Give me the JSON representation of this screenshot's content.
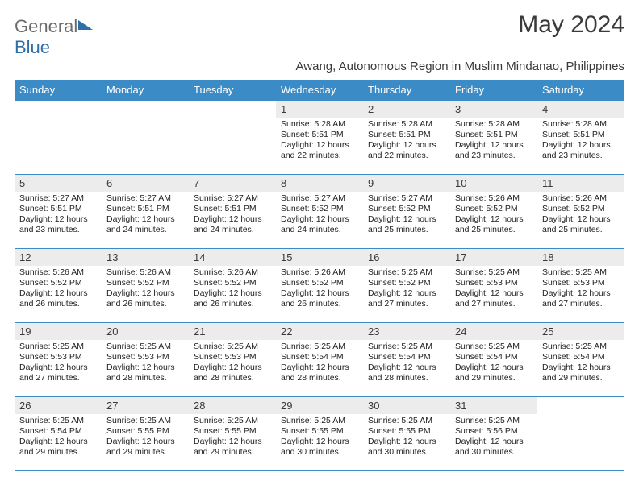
{
  "brand": {
    "part1": "General",
    "part2": "Blue"
  },
  "title": "May 2024",
  "subtitle": "Awang, Autonomous Region in Muslim Mindanao, Philippines",
  "colors": {
    "header_bg": "#3b8bc7",
    "header_fg": "#ffffff",
    "daynum_bg": "#ececec",
    "text": "#3a3a3a",
    "border": "#3b8bc7",
    "logo_gray": "#6b6b6b",
    "logo_blue": "#2f6fa8"
  },
  "weekdays": [
    "Sunday",
    "Monday",
    "Tuesday",
    "Wednesday",
    "Thursday",
    "Friday",
    "Saturday"
  ],
  "weeks": [
    [
      null,
      null,
      null,
      {
        "n": "1",
        "sr": "5:28 AM",
        "ss": "5:51 PM",
        "dlh": "12",
        "dlm": "22"
      },
      {
        "n": "2",
        "sr": "5:28 AM",
        "ss": "5:51 PM",
        "dlh": "12",
        "dlm": "22"
      },
      {
        "n": "3",
        "sr": "5:28 AM",
        "ss": "5:51 PM",
        "dlh": "12",
        "dlm": "23"
      },
      {
        "n": "4",
        "sr": "5:28 AM",
        "ss": "5:51 PM",
        "dlh": "12",
        "dlm": "23"
      }
    ],
    [
      {
        "n": "5",
        "sr": "5:27 AM",
        "ss": "5:51 PM",
        "dlh": "12",
        "dlm": "23"
      },
      {
        "n": "6",
        "sr": "5:27 AM",
        "ss": "5:51 PM",
        "dlh": "12",
        "dlm": "24"
      },
      {
        "n": "7",
        "sr": "5:27 AM",
        "ss": "5:51 PM",
        "dlh": "12",
        "dlm": "24"
      },
      {
        "n": "8",
        "sr": "5:27 AM",
        "ss": "5:52 PM",
        "dlh": "12",
        "dlm": "24"
      },
      {
        "n": "9",
        "sr": "5:27 AM",
        "ss": "5:52 PM",
        "dlh": "12",
        "dlm": "25"
      },
      {
        "n": "10",
        "sr": "5:26 AM",
        "ss": "5:52 PM",
        "dlh": "12",
        "dlm": "25"
      },
      {
        "n": "11",
        "sr": "5:26 AM",
        "ss": "5:52 PM",
        "dlh": "12",
        "dlm": "25"
      }
    ],
    [
      {
        "n": "12",
        "sr": "5:26 AM",
        "ss": "5:52 PM",
        "dlh": "12",
        "dlm": "26"
      },
      {
        "n": "13",
        "sr": "5:26 AM",
        "ss": "5:52 PM",
        "dlh": "12",
        "dlm": "26"
      },
      {
        "n": "14",
        "sr": "5:26 AM",
        "ss": "5:52 PM",
        "dlh": "12",
        "dlm": "26"
      },
      {
        "n": "15",
        "sr": "5:26 AM",
        "ss": "5:52 PM",
        "dlh": "12",
        "dlm": "26"
      },
      {
        "n": "16",
        "sr": "5:25 AM",
        "ss": "5:52 PM",
        "dlh": "12",
        "dlm": "27"
      },
      {
        "n": "17",
        "sr": "5:25 AM",
        "ss": "5:53 PM",
        "dlh": "12",
        "dlm": "27"
      },
      {
        "n": "18",
        "sr": "5:25 AM",
        "ss": "5:53 PM",
        "dlh": "12",
        "dlm": "27"
      }
    ],
    [
      {
        "n": "19",
        "sr": "5:25 AM",
        "ss": "5:53 PM",
        "dlh": "12",
        "dlm": "27"
      },
      {
        "n": "20",
        "sr": "5:25 AM",
        "ss": "5:53 PM",
        "dlh": "12",
        "dlm": "28"
      },
      {
        "n": "21",
        "sr": "5:25 AM",
        "ss": "5:53 PM",
        "dlh": "12",
        "dlm": "28"
      },
      {
        "n": "22",
        "sr": "5:25 AM",
        "ss": "5:54 PM",
        "dlh": "12",
        "dlm": "28"
      },
      {
        "n": "23",
        "sr": "5:25 AM",
        "ss": "5:54 PM",
        "dlh": "12",
        "dlm": "28"
      },
      {
        "n": "24",
        "sr": "5:25 AM",
        "ss": "5:54 PM",
        "dlh": "12",
        "dlm": "29"
      },
      {
        "n": "25",
        "sr": "5:25 AM",
        "ss": "5:54 PM",
        "dlh": "12",
        "dlm": "29"
      }
    ],
    [
      {
        "n": "26",
        "sr": "5:25 AM",
        "ss": "5:54 PM",
        "dlh": "12",
        "dlm": "29"
      },
      {
        "n": "27",
        "sr": "5:25 AM",
        "ss": "5:55 PM",
        "dlh": "12",
        "dlm": "29"
      },
      {
        "n": "28",
        "sr": "5:25 AM",
        "ss": "5:55 PM",
        "dlh": "12",
        "dlm": "29"
      },
      {
        "n": "29",
        "sr": "5:25 AM",
        "ss": "5:55 PM",
        "dlh": "12",
        "dlm": "30"
      },
      {
        "n": "30",
        "sr": "5:25 AM",
        "ss": "5:55 PM",
        "dlh": "12",
        "dlm": "30"
      },
      {
        "n": "31",
        "sr": "5:25 AM",
        "ss": "5:56 PM",
        "dlh": "12",
        "dlm": "30"
      },
      null
    ]
  ],
  "labels": {
    "sunrise": "Sunrise:",
    "sunset": "Sunset:",
    "daylight": "Daylight:",
    "hours": "hours",
    "and": "and",
    "minutes": "minutes."
  }
}
